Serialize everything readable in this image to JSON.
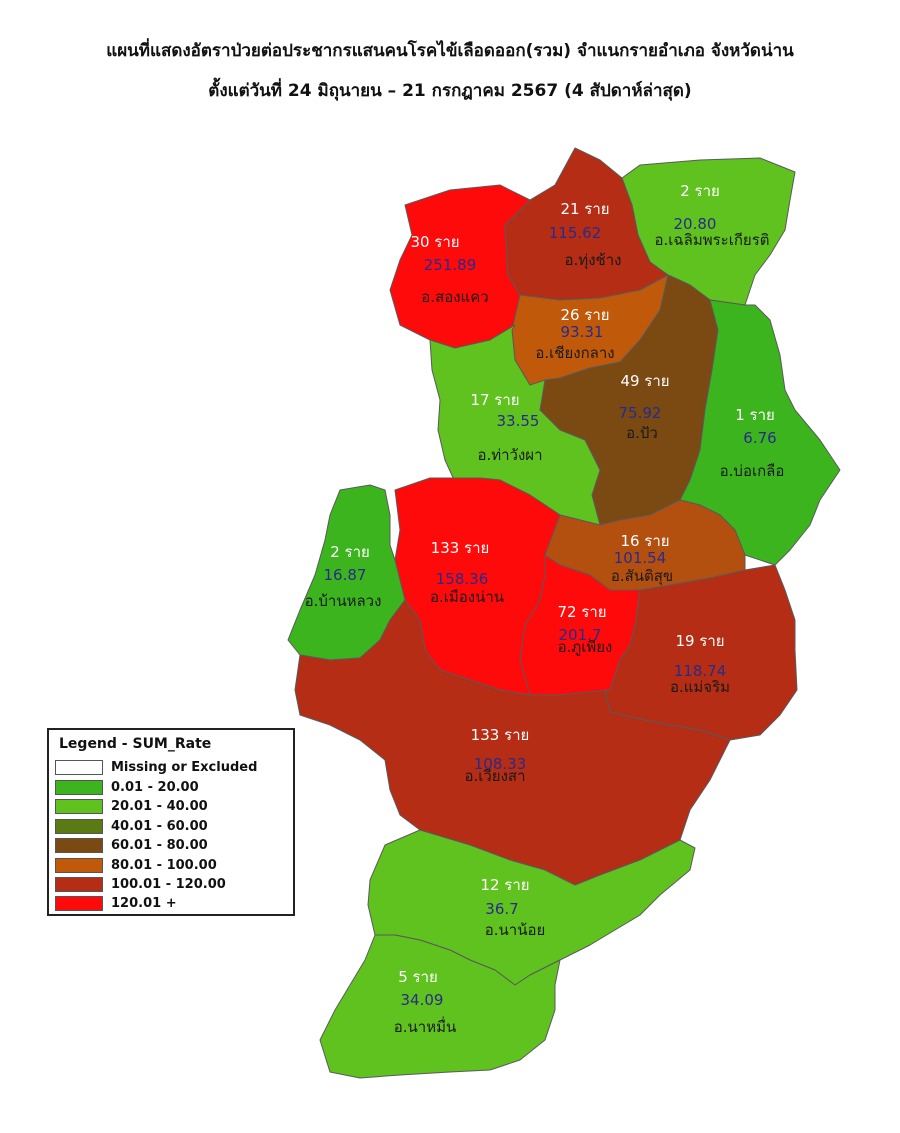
{
  "title": {
    "line1": "แผนที่แสดงอัตราป่วยต่อประชากรแสนคนโรคไข้เลือดออก(รวม) จำแนกรายอำเภอ จังหวัดน่าน",
    "line2": "ตั้งแต่วันที่ 24  มิถุนายน – 21 กรกฎาคม 2567 (4 สัปดาห์ล่าสุด)"
  },
  "legend": {
    "title": "Legend - SUM_Rate",
    "items": [
      {
        "label": "Missing or Excluded",
        "color": "#ffffff"
      },
      {
        "label": "0.01 - 20.00",
        "color": "#3cb41e"
      },
      {
        "label": "20.01 - 40.00",
        "color": "#5fc21e"
      },
      {
        "label": "40.01 - 60.00",
        "color": "#5a7a14"
      },
      {
        "label": "60.01 - 80.00",
        "color": "#7a4a12"
      },
      {
        "label": "80.01 - 100.00",
        "color": "#c05a0a"
      },
      {
        "label": "100.01 - 120.00",
        "color": "#b42d14"
      },
      {
        "label": "120.01 +",
        "color": "#ff0a0a"
      }
    ]
  },
  "districts": [
    {
      "id": "song-khwae",
      "cases": "30 ราย",
      "rate": "251.89",
      "name": "อ.สองแคว",
      "color": "#ff0a0a"
    },
    {
      "id": "thung-chang",
      "cases": "21 ราย",
      "rate": "115.62",
      "name": "อ.ทุ่งช้าง",
      "color": "#b42d14"
    },
    {
      "id": "chaloem-phra-kiat",
      "cases": "2 ราย",
      "rate": "20.80",
      "name": "อ.เฉลิมพระเกียรติ",
      "color": "#5fc21e"
    },
    {
      "id": "chiang-klang",
      "cases": "26 ราย",
      "rate": "93.31",
      "name": "อ.เชียงกลาง",
      "color": "#c05a0a"
    },
    {
      "id": "pua",
      "cases": "49 ราย",
      "rate": "75.92",
      "name": "อ.ปัว",
      "color": "#7a4a12"
    },
    {
      "id": "tha-wang-pha",
      "cases": "17 ราย",
      "rate": "33.55",
      "name": "อ.ท่าวังผา",
      "color": "#5fc21e"
    },
    {
      "id": "bo-kluea",
      "cases": "1 ราย",
      "rate": "6.76",
      "name": "อ.บ่อเกลือ",
      "color": "#3cb41e"
    },
    {
      "id": "santi-suk",
      "cases": "16 ราย",
      "rate": "101.54",
      "name": "อ.สันติสุข",
      "color": "#b4500f"
    },
    {
      "id": "mueang-nan",
      "cases": "133 ราย",
      "rate": "158.36",
      "name": "อ.เมืองน่าน",
      "color": "#ff0a0a"
    },
    {
      "id": "ban-luang",
      "cases": "2 ราย",
      "rate": "16.87",
      "name": "อ.บ้านหลวง",
      "color": "#3cb41e"
    },
    {
      "id": "phu-phiang",
      "cases": "72 ราย",
      "rate": "201.7",
      "name": "อ.ภูเพียง",
      "color": "#ff0a0a"
    },
    {
      "id": "mae-charim",
      "cases": "19 ราย",
      "rate": "118.74",
      "name": "อ.แม่จริม",
      "color": "#b42d14"
    },
    {
      "id": "wiang-sa",
      "cases": "133 ราย",
      "rate": "108.33",
      "name": "อ.เวียงสา",
      "color": "#b42d14"
    },
    {
      "id": "na-noi",
      "cases": "12 ราย",
      "rate": "36.7",
      "name": "อ.นาน้อย",
      "color": "#5fc21e"
    },
    {
      "id": "na-muen",
      "cases": "5 ราย",
      "rate": "34.09",
      "name": "อ.นาหมื่น",
      "color": "#5fc21e"
    }
  ]
}
